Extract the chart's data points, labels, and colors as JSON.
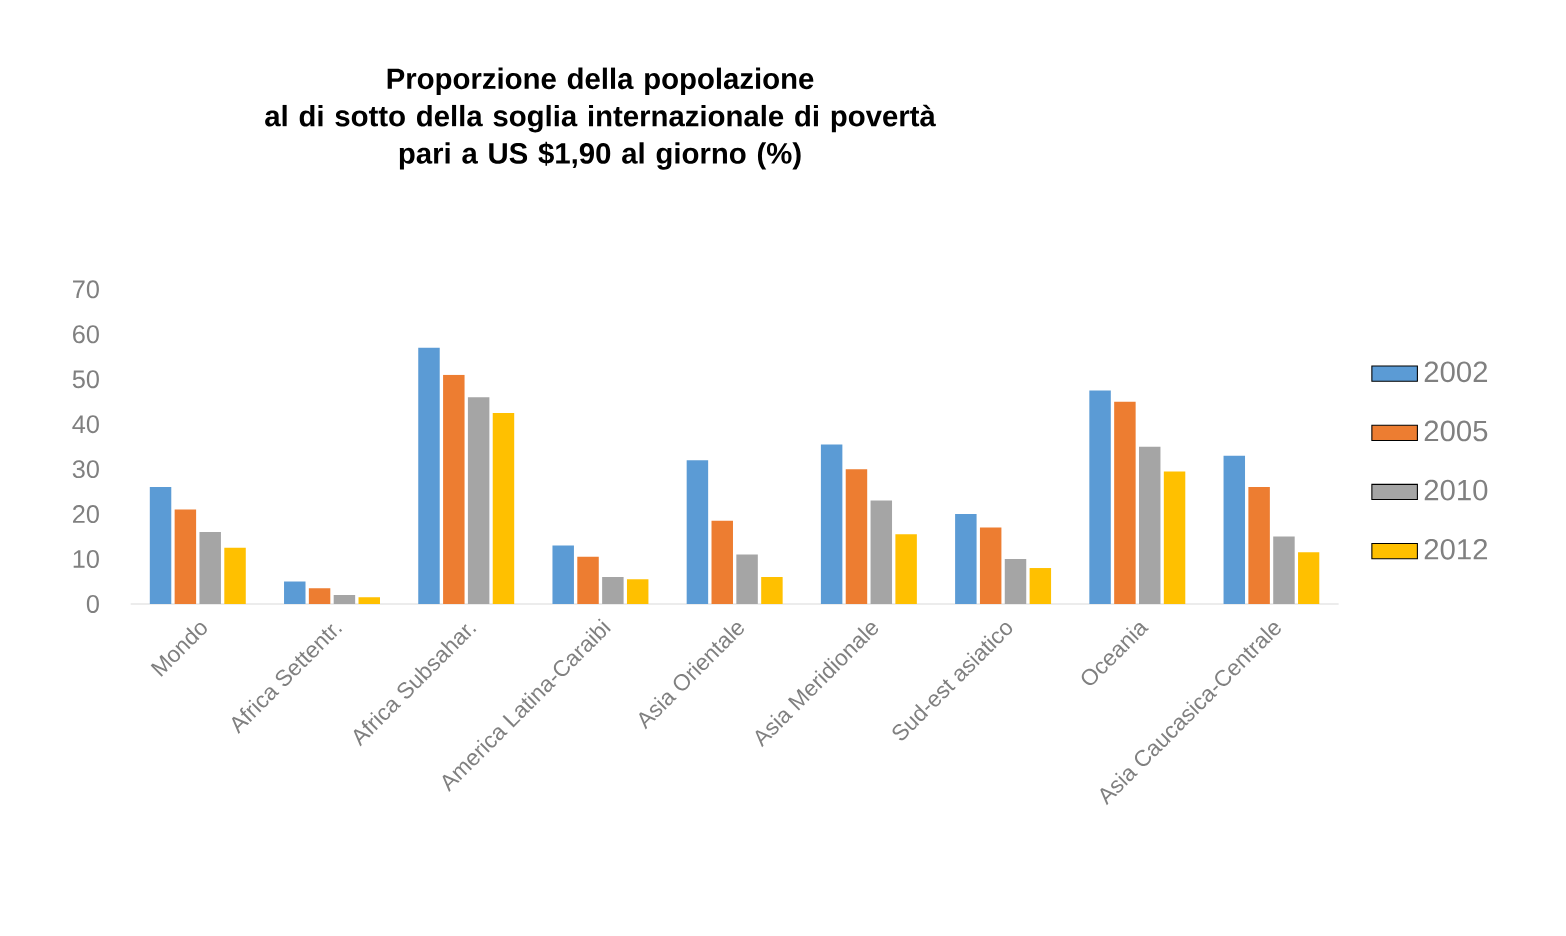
{
  "chart_data": {
    "type": "bar",
    "title": "Proporzione della popolazione\nal di sotto della soglia internazionale di povertà\npari a US $1,90 al giorno (%)",
    "categories": [
      "Mondo",
      "Africa Settentr.",
      "Africa Subsahar.",
      "America Latina-Caraibi",
      "Asia Orientale",
      "Asia Meridionale",
      "Sud-est asiatico",
      "Oceania",
      "Asia Caucasica-Centrale"
    ],
    "series": [
      {
        "name": "2002",
        "color": "#5b9bd5",
        "values": [
          26,
          5,
          57,
          13,
          32,
          35.5,
          20,
          47.5,
          33
        ]
      },
      {
        "name": "2005",
        "color": "#ed7d31",
        "values": [
          21,
          3.5,
          51,
          10.5,
          18.5,
          30,
          17,
          45,
          26
        ]
      },
      {
        "name": "2010",
        "color": "#a5a5a5",
        "values": [
          16,
          2,
          46,
          6,
          11,
          23,
          10,
          35,
          15
        ]
      },
      {
        "name": "2012",
        "color": "#ffc000",
        "values": [
          12.5,
          1.5,
          42.5,
          5.5,
          6,
          15.5,
          8,
          29.5,
          11.5
        ]
      }
    ],
    "ylim": [
      0,
      70
    ],
    "yticks": [
      0,
      10,
      20,
      30,
      40,
      50,
      60,
      70
    ],
    "grid": false,
    "legend": "right"
  }
}
